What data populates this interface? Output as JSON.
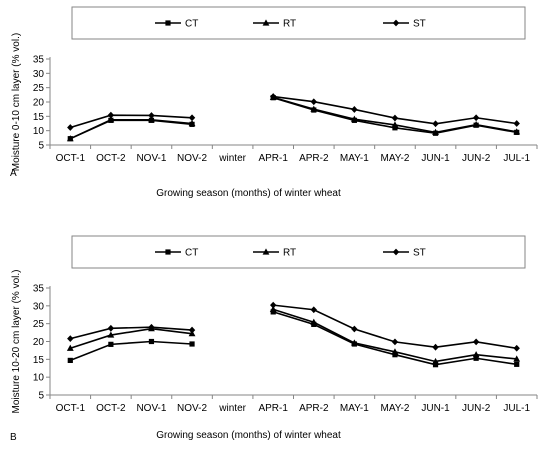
{
  "chart_data": [
    {
      "type": "line",
      "panel_label": "A",
      "categories": [
        "OCT-1",
        "OCT-2",
        "NOV-1",
        "NOV-2",
        "winter",
        "APR-1",
        "APR-2",
        "MAY-1",
        "MAY-2",
        "JUN-1",
        "JUN-2",
        "JUL-1"
      ],
      "series": [
        {
          "name": "CT",
          "marker": "square",
          "values": [
            7.2,
            13.6,
            13.6,
            12.2,
            null,
            21.5,
            17.2,
            13.6,
            11.0,
            9.1,
            11.9,
            9.4
          ]
        },
        {
          "name": "RT",
          "marker": "triangle",
          "values": [
            7.2,
            13.8,
            13.8,
            12.5,
            null,
            21.6,
            17.5,
            14.0,
            12.0,
            9.4,
            12.1,
            9.6
          ]
        },
        {
          "name": "ST",
          "marker": "diamond",
          "values": [
            11.1,
            15.4,
            15.3,
            14.5,
            null,
            21.9,
            20.1,
            17.4,
            14.4,
            12.4,
            14.5,
            12.5
          ]
        }
      ],
      "xlabel": "Growing season (months) of winter wheat",
      "ylabel": "Moisture 0-10 cm layer (% vol.)",
      "ylim": [
        5,
        35
      ],
      "yticks": [
        5,
        10,
        15,
        20,
        25,
        30,
        35
      ],
      "grid": false,
      "legend_position": "top"
    },
    {
      "type": "line",
      "panel_label": "B",
      "categories": [
        "OCT-1",
        "OCT-2",
        "NOV-1",
        "NOV-2",
        "winter",
        "APR-1",
        "APR-2",
        "MAY-1",
        "MAY-2",
        "JUN-1",
        "JUN-2",
        "JUL-1"
      ],
      "series": [
        {
          "name": "CT",
          "marker": "square",
          "values": [
            14.7,
            19.2,
            20.0,
            19.3,
            null,
            28.3,
            24.8,
            19.3,
            16.3,
            13.5,
            15.3,
            13.6
          ]
        },
        {
          "name": "RT",
          "marker": "triangle",
          "values": [
            18.1,
            21.8,
            23.6,
            22.2,
            null,
            29.0,
            25.4,
            19.6,
            17.1,
            14.4,
            16.3,
            15.1
          ]
        },
        {
          "name": "ST",
          "marker": "diamond",
          "values": [
            20.8,
            23.7,
            24.0,
            23.2,
            null,
            30.2,
            28.9,
            23.5,
            19.9,
            18.4,
            19.9,
            18.1
          ]
        }
      ],
      "xlabel": "Growing season (months) of winter wheat",
      "ylabel": "Moisture 10-20 cm layer (% vol.)",
      "ylim": [
        5,
        35
      ],
      "yticks": [
        5,
        10,
        15,
        20,
        25,
        30,
        35
      ],
      "grid": false,
      "legend_position": "top"
    }
  ],
  "colors": {
    "line": "#000000",
    "axis": "#868686",
    "legend_border": "#868686"
  }
}
